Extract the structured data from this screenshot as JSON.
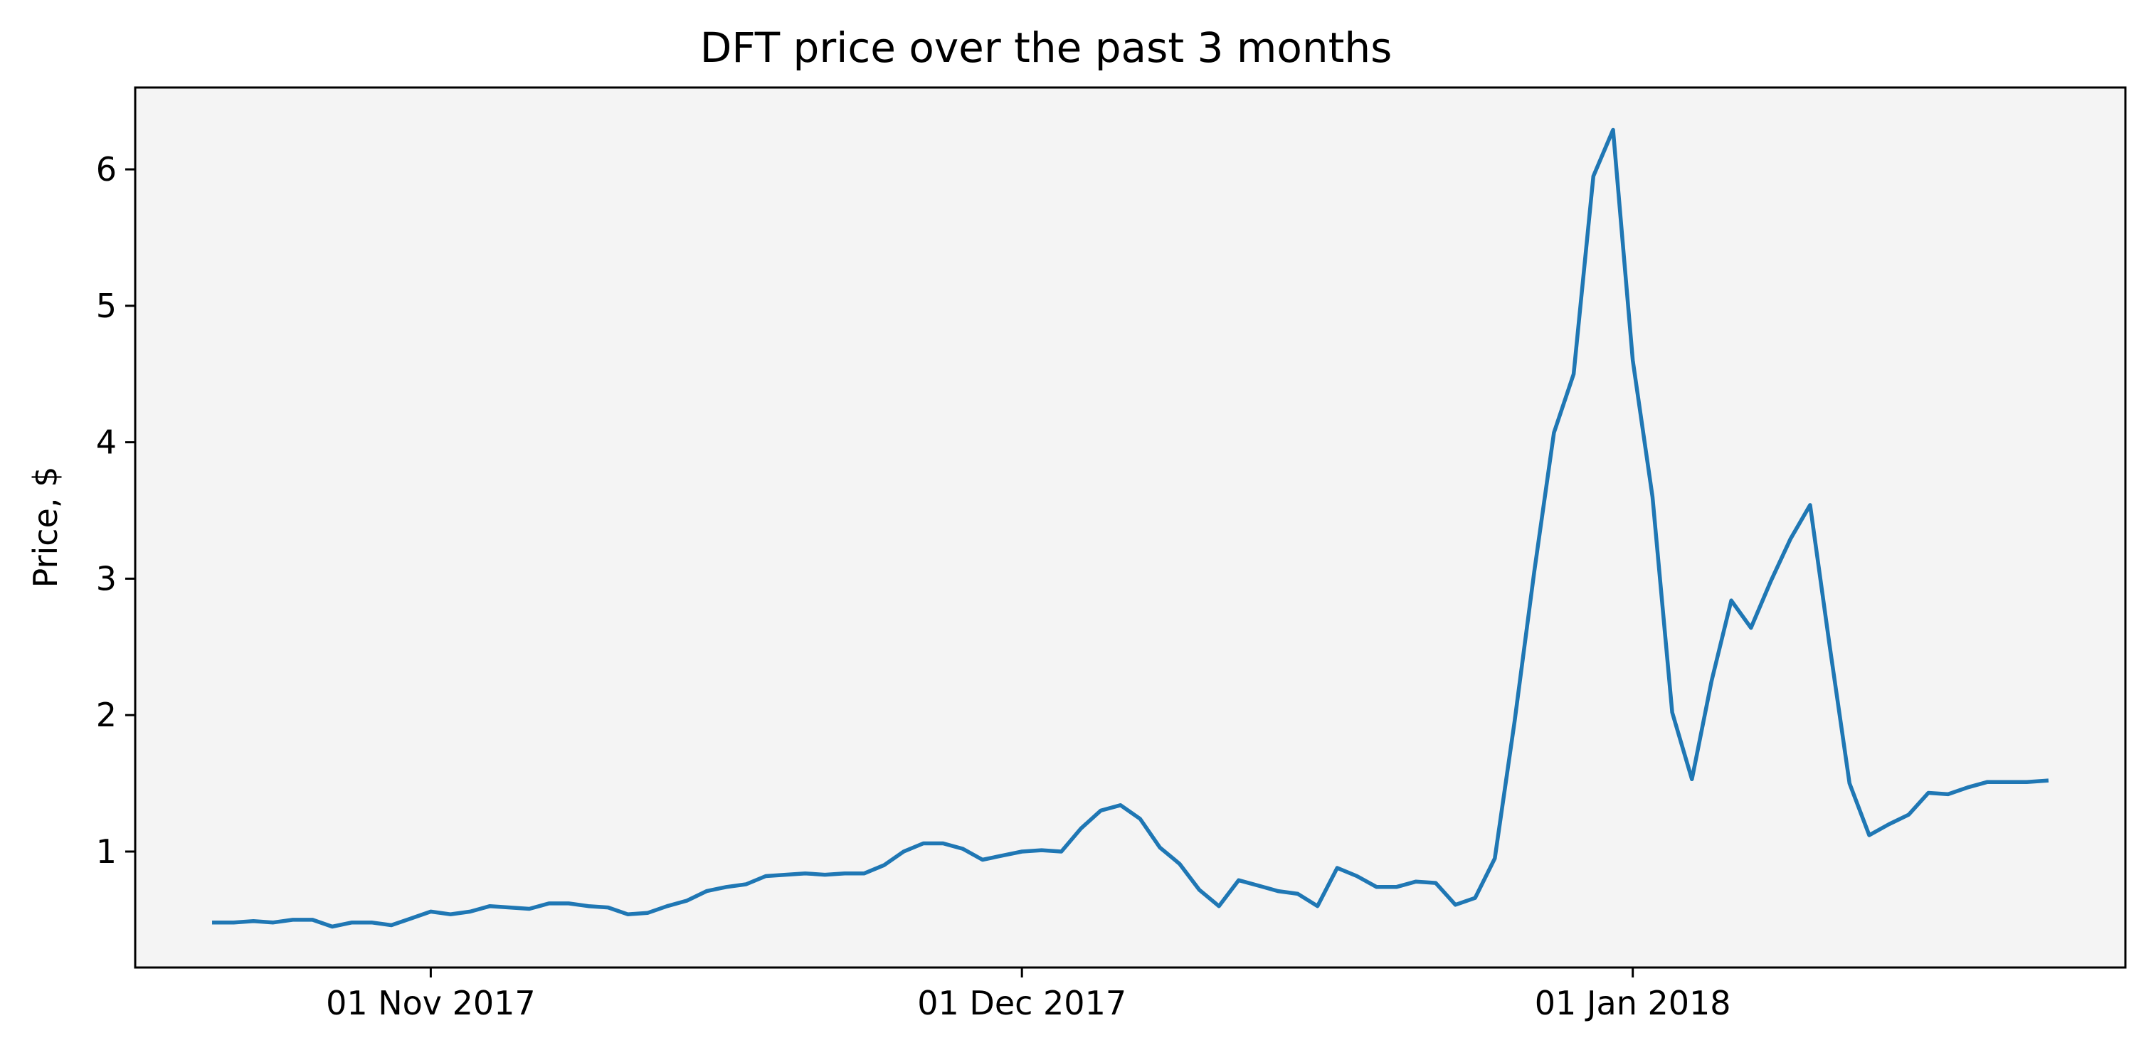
{
  "chart_data": {
    "type": "line",
    "title": "DFT price over the past 3 months",
    "xlabel": "",
    "ylabel": "Price, $",
    "x_axis_type": "date",
    "xlim": [
      "2017-10-17",
      "2018-01-26"
    ],
    "ylim": [
      0.15,
      6.6
    ],
    "x_ticks": [
      {
        "date": "2017-11-01",
        "label": "01 Nov 2017"
      },
      {
        "date": "2017-12-01",
        "label": "01 Dec 2017"
      },
      {
        "date": "2018-01-01",
        "label": "01 Jan 2018"
      }
    ],
    "y_ticks": [
      1,
      2,
      3,
      4,
      5,
      6
    ],
    "y_tick_labels": [
      "1",
      "2",
      "3",
      "4",
      "5",
      "6"
    ],
    "grid": false,
    "legend": "none",
    "colors": {
      "line": "#1f77b4",
      "plot_background": "#f4f4f4",
      "axes": "#000000"
    },
    "series": [
      {
        "x": [
          "2017-10-21",
          "2017-10-22",
          "2017-10-23",
          "2017-10-24",
          "2017-10-25",
          "2017-10-26",
          "2017-10-27",
          "2017-10-28",
          "2017-10-29",
          "2017-10-30",
          "2017-10-31",
          "2017-11-01",
          "2017-11-02",
          "2017-11-03",
          "2017-11-04",
          "2017-11-05",
          "2017-11-06",
          "2017-11-07",
          "2017-11-08",
          "2017-11-09",
          "2017-11-10",
          "2017-11-11",
          "2017-11-12",
          "2017-11-13",
          "2017-11-14",
          "2017-11-15",
          "2017-11-16",
          "2017-11-17",
          "2017-11-18",
          "2017-11-19",
          "2017-11-20",
          "2017-11-21",
          "2017-11-22",
          "2017-11-23",
          "2017-11-24",
          "2017-11-25",
          "2017-11-26",
          "2017-11-27",
          "2017-11-28",
          "2017-11-29",
          "2017-11-30",
          "2017-12-01",
          "2017-12-02",
          "2017-12-03",
          "2017-12-04",
          "2017-12-05",
          "2017-12-06",
          "2017-12-07",
          "2017-12-08",
          "2017-12-09",
          "2017-12-10",
          "2017-12-11",
          "2017-12-12",
          "2017-12-13",
          "2017-12-14",
          "2017-12-15",
          "2017-12-16",
          "2017-12-17",
          "2017-12-18",
          "2017-12-19",
          "2017-12-20",
          "2017-12-21",
          "2017-12-22",
          "2017-12-23",
          "2017-12-24",
          "2017-12-25",
          "2017-12-26",
          "2017-12-27",
          "2017-12-28",
          "2017-12-29",
          "2017-12-30",
          "2017-12-31",
          "2018-01-01",
          "2018-01-02",
          "2018-01-03",
          "2018-01-04",
          "2018-01-05",
          "2018-01-06",
          "2018-01-07",
          "2018-01-08",
          "2018-01-09",
          "2018-01-10",
          "2018-01-11",
          "2018-01-12",
          "2018-01-13",
          "2018-01-14",
          "2018-01-15",
          "2018-01-16",
          "2018-01-17",
          "2018-01-18",
          "2018-01-19",
          "2018-01-20",
          "2018-01-21",
          "2018-01-22"
        ],
        "values": [
          0.48,
          0.48,
          0.49,
          0.48,
          0.5,
          0.5,
          0.45,
          0.48,
          0.48,
          0.46,
          0.51,
          0.56,
          0.54,
          0.56,
          0.6,
          0.59,
          0.58,
          0.62,
          0.62,
          0.6,
          0.59,
          0.54,
          0.55,
          0.6,
          0.64,
          0.71,
          0.74,
          0.76,
          0.82,
          0.83,
          0.84,
          0.83,
          0.84,
          0.84,
          0.9,
          1.0,
          1.06,
          1.06,
          1.02,
          0.94,
          0.97,
          1.0,
          1.01,
          1.0,
          1.17,
          1.3,
          1.34,
          1.24,
          1.03,
          0.91,
          0.72,
          0.6,
          0.79,
          0.75,
          0.71,
          0.69,
          0.6,
          0.88,
          0.82,
          0.74,
          0.74,
          0.78,
          0.77,
          0.61,
          0.66,
          0.95,
          1.95,
          3.05,
          4.07,
          4.5,
          5.95,
          6.29,
          4.6,
          3.6,
          2.02,
          1.53,
          2.25,
          2.84,
          2.64,
          2.98,
          3.29,
          3.54,
          2.5,
          1.5,
          1.12,
          1.2,
          1.27,
          1.43,
          1.42,
          1.47,
          1.51,
          1.51,
          1.51,
          1.52
        ]
      }
    ]
  }
}
